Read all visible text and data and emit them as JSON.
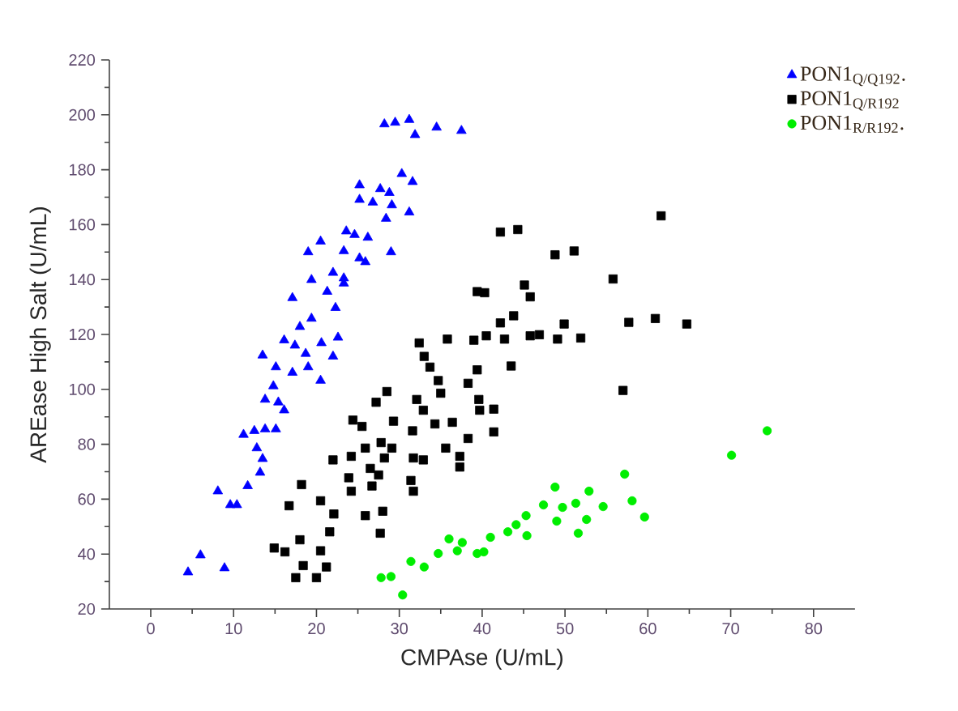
{
  "chart_data": {
    "type": "scatter",
    "xlabel": "CMPAse (U/mL)",
    "ylabel": "AREase High Salt (U/mL)",
    "xlim": [
      -5,
      85
    ],
    "ylim": [
      20,
      220
    ],
    "xticks": [
      0,
      10,
      20,
      30,
      40,
      50,
      60,
      70,
      80
    ],
    "yticks": [
      20,
      40,
      60,
      80,
      100,
      120,
      140,
      160,
      180,
      200,
      220
    ],
    "legend": "top right",
    "grid": false,
    "series": [
      {
        "name": "PON1$_{Q/Q192}$.",
        "color": "#0000ff",
        "marker": "triangle",
        "x": [
          28.2,
          29.5,
          31.2,
          31.9,
          34.5,
          37.5,
          30.3,
          31.6,
          25.2,
          27.7,
          28.8,
          25.2,
          26.8,
          29.1,
          31.2,
          28.4,
          23.6,
          24.6,
          26.2,
          20.5,
          19.0,
          23.3,
          29.0,
          25.2,
          25.9,
          19.4,
          22.0,
          23.3,
          21.3,
          23.3,
          17.1,
          22.3,
          19.4,
          18.0,
          16.1,
          20.6,
          22.6,
          17.4,
          18.7,
          22.0,
          13.5,
          15.1,
          17.1,
          19.0,
          20.5,
          14.8,
          13.8,
          15.4,
          16.1,
          11.2,
          12.5,
          13.8,
          15.1,
          12.8,
          13.5,
          13.2,
          8.1,
          11.7,
          9.6,
          10.4,
          6.0,
          4.5,
          8.9
        ],
        "values": [
          196.6,
          197.2,
          198.2,
          192.7,
          195.4,
          194.2,
          178.5,
          175.6,
          174.4,
          173.0,
          171.6,
          169.1,
          168.1,
          167.1,
          164.5,
          162.2,
          157.6,
          156.3,
          155.3,
          153.9,
          150.0,
          150.4,
          150.0,
          147.8,
          146.4,
          139.9,
          142.5,
          140.5,
          135.6,
          138.6,
          133.3,
          129.7,
          125.8,
          122.8,
          117.9,
          116.9,
          118.9,
          116.0,
          113.0,
          112.0,
          112.4,
          108.1,
          106.1,
          108.1,
          103.2,
          101.2,
          96.3,
          95.3,
          92.4,
          83.5,
          84.9,
          85.5,
          85.5,
          78.6,
          74.7,
          69.7,
          62.9,
          64.8,
          57.9,
          57.9,
          39.6,
          33.4,
          34.9
        ]
      },
      {
        "name": "PON1$_{Q/R192}$",
        "color": "#000000",
        "marker": "square",
        "x": [
          61.6,
          42.2,
          44.3,
          48.8,
          51.1,
          55.8,
          39.4,
          40.3,
          45.1,
          45.8,
          43.8,
          42.2,
          49.9,
          57.7,
          60.9,
          64.7,
          32.4,
          35.8,
          39.0,
          40.5,
          42.7,
          45.8,
          46.9,
          49.1,
          51.9,
          33.0,
          33.7,
          39.4,
          43.5,
          34.7,
          38.3,
          35.0,
          57.0,
          28.5,
          27.2,
          32.1,
          32.9,
          39.6,
          39.7,
          41.4,
          34.3,
          36.4,
          41.4,
          38.3,
          24.4,
          25.5,
          29.3,
          31.6,
          27.8,
          25.9,
          29.1,
          35.6,
          22.0,
          24.2,
          31.7,
          32.9,
          28.2,
          37.3,
          37.3,
          26.5,
          23.9,
          27.5,
          31.4,
          24.2,
          26.7,
          31.7,
          18.2,
          20.5,
          16.7,
          22.1,
          28.0,
          25.9,
          21.6,
          27.7,
          18.0,
          14.9,
          16.2,
          20.5,
          18.4,
          21.2,
          17.5,
          20.0
        ],
        "values": [
          163.2,
          157.3,
          158.2,
          149.0,
          150.4,
          140.2,
          135.6,
          135.2,
          138.0,
          133.7,
          126.8,
          124.2,
          123.8,
          124.4,
          125.8,
          123.8,
          116.9,
          118.3,
          117.9,
          119.5,
          118.3,
          119.5,
          119.9,
          118.3,
          118.7,
          112.0,
          108.1,
          107.1,
          108.5,
          103.2,
          102.2,
          98.6,
          99.6,
          99.2,
          95.3,
          96.3,
          92.4,
          96.3,
          92.4,
          92.8,
          87.4,
          88.0,
          84.5,
          82.1,
          88.8,
          86.5,
          88.4,
          84.9,
          80.6,
          78.6,
          78.6,
          78.6,
          74.3,
          75.6,
          75.0,
          74.3,
          75.0,
          75.6,
          71.7,
          71.2,
          67.8,
          68.8,
          66.8,
          62.9,
          64.8,
          62.9,
          65.3,
          59.4,
          57.6,
          54.6,
          55.6,
          54.0,
          48.1,
          47.6,
          45.2,
          42.2,
          40.8,
          41.2,
          35.8,
          35.3,
          31.4,
          31.4
        ]
      },
      {
        "name": "PON1$_{R/R192}$.",
        "color": "#00ee00",
        "marker": "circle",
        "x": [
          74.4,
          70.1,
          57.2,
          48.8,
          52.9,
          58.1,
          59.6,
          47.4,
          49.7,
          51.3,
          54.6,
          52.6,
          49.0,
          51.6,
          45.3,
          44.1,
          43.1,
          45.4,
          41.0,
          39.4,
          40.2,
          37.6,
          36.0,
          37.0,
          34.7,
          33.0,
          31.4,
          27.8,
          29.0,
          30.4
        ],
        "values": [
          84.9,
          76.0,
          69.1,
          64.4,
          62.9,
          59.4,
          53.5,
          57.9,
          57.0,
          58.5,
          57.3,
          52.6,
          52.0,
          47.6,
          54.0,
          50.7,
          48.1,
          46.7,
          46.1,
          40.2,
          40.8,
          44.2,
          45.5,
          41.2,
          40.2,
          35.3,
          37.3,
          31.4,
          31.8,
          25.1
        ]
      }
    ]
  }
}
